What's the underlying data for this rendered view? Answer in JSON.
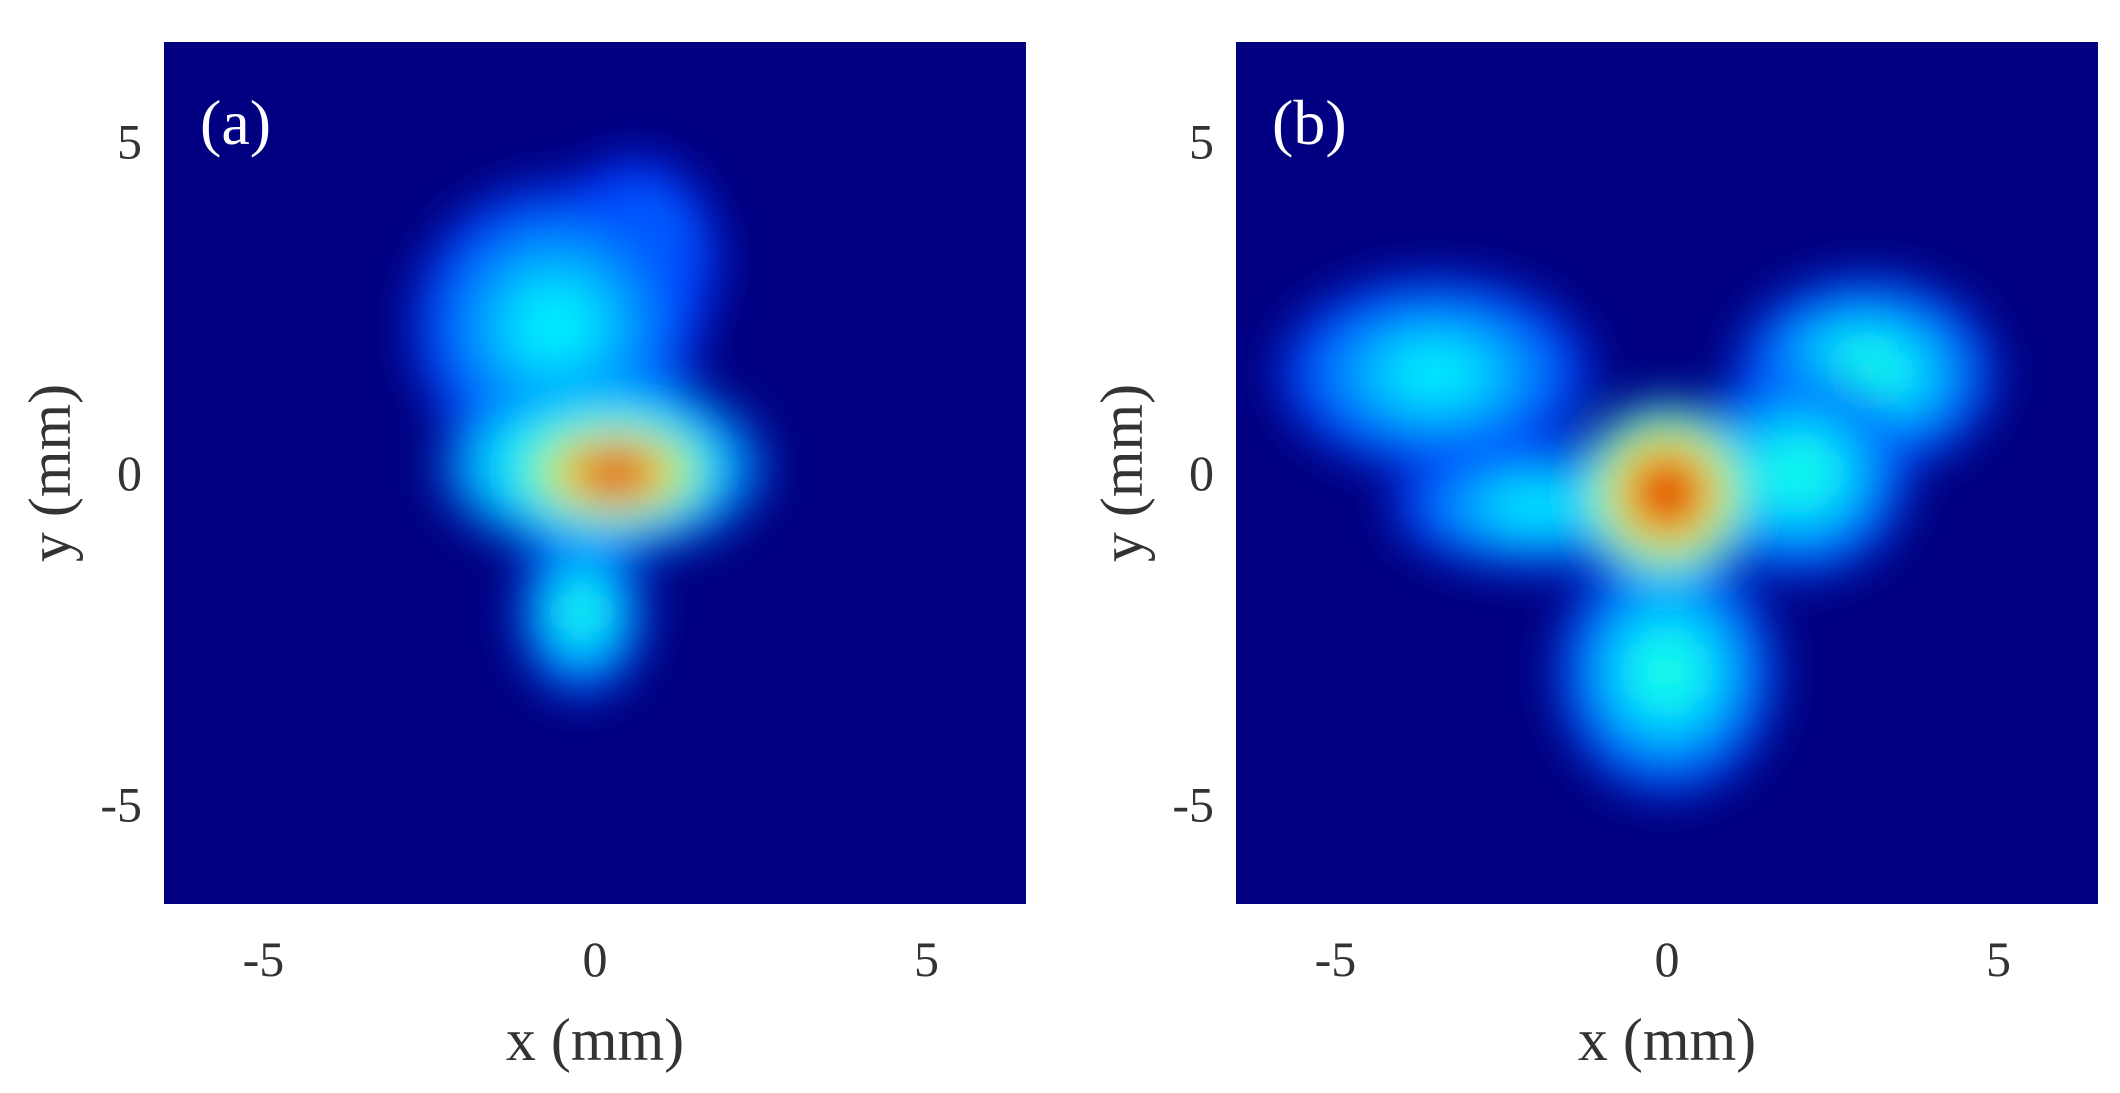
{
  "chart_data": [
    {
      "type": "heatmap",
      "panel_label": "(a)",
      "xlabel": "x (mm)",
      "ylabel": "y (mm)",
      "xlim": [
        -6.5,
        6.5
      ],
      "ylim": [
        -6.5,
        6.5
      ],
      "xticks": [
        -5,
        0,
        5
      ],
      "yticks": [
        -5,
        0,
        5
      ],
      "xtick_labels": [
        "-5",
        "0",
        "5"
      ],
      "ytick_labels": [
        "-5",
        "0",
        "5"
      ],
      "colormap": "jet",
      "background_color": "#000080",
      "intensity_blobs": [
        {
          "cx": 0.3,
          "cy": 0.0,
          "rx": 1.6,
          "ry": 0.9,
          "value": 1.0
        },
        {
          "cx": 0.1,
          "cy": 0.1,
          "rx": 2.5,
          "ry": 1.4,
          "value": 0.55
        },
        {
          "cx": -0.6,
          "cy": 2.2,
          "rx": 2.2,
          "ry": 2.2,
          "value": 0.3
        },
        {
          "cx": 0.6,
          "cy": 3.2,
          "rx": 1.3,
          "ry": 1.6,
          "value": 0.22
        },
        {
          "cx": -0.2,
          "cy": -2.1,
          "rx": 1.0,
          "ry": 1.3,
          "value": 0.35
        }
      ]
    },
    {
      "type": "heatmap",
      "panel_label": "(b)",
      "xlabel": "x (mm)",
      "ylabel": "y (mm)",
      "xlim": [
        -6.5,
        6.5
      ],
      "ylim": [
        -6.5,
        6.5
      ],
      "xticks": [
        -5,
        0,
        5
      ],
      "yticks": [
        -5,
        0,
        5
      ],
      "xtick_labels": [
        "-5",
        "0",
        "5"
      ],
      "ytick_labels": [
        "-5",
        "0",
        "5"
      ],
      "colormap": "jet",
      "background_color": "#000080",
      "intensity_blobs": [
        {
          "cx": 0.0,
          "cy": -0.3,
          "rx": 1.4,
          "ry": 1.4,
          "value": 1.0
        },
        {
          "cx": -3.5,
          "cy": 1.5,
          "rx": 2.4,
          "ry": 1.5,
          "value": 0.3
        },
        {
          "cx": 3.0,
          "cy": 1.5,
          "rx": 2.0,
          "ry": 1.5,
          "value": 0.35
        },
        {
          "cx": 0.0,
          "cy": -3.0,
          "rx": 1.7,
          "ry": 1.9,
          "value": 0.35
        },
        {
          "cx": -2.0,
          "cy": -0.5,
          "rx": 2.2,
          "ry": 1.0,
          "value": 0.3
        },
        {
          "cx": 2.0,
          "cy": 0.0,
          "rx": 1.7,
          "ry": 1.6,
          "value": 0.35
        }
      ]
    }
  ]
}
